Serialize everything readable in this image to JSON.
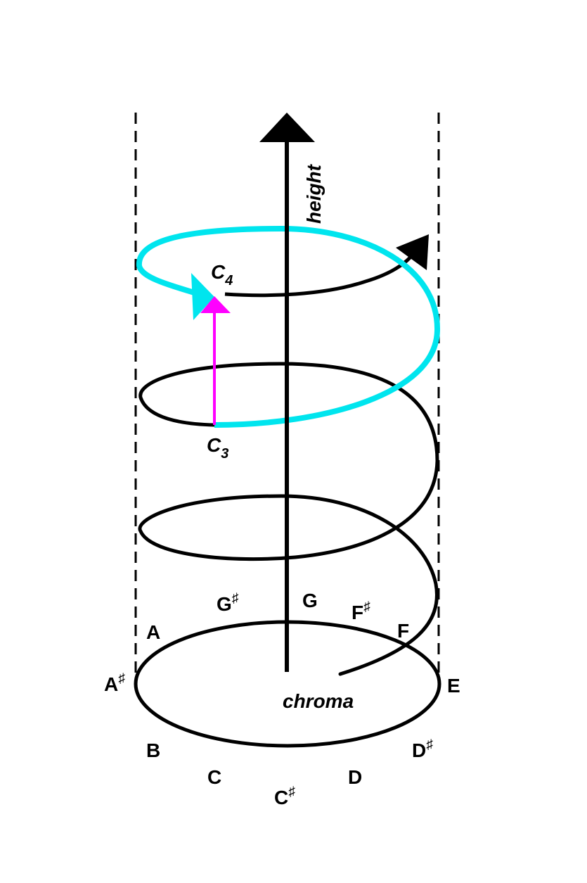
{
  "axis": {
    "label": "height"
  },
  "base": {
    "label": "chroma"
  },
  "pitches": {
    "c3": "C",
    "c3_sub": "3",
    "c4": "C",
    "c4_sub": "4"
  },
  "chroma_notes": {
    "a": "A",
    "a_sharp": "A",
    "a_sharp_mark": "♯",
    "b": "B",
    "c": "C",
    "c_sharp": "C",
    "c_sharp_mark": "♯",
    "d": "D",
    "d_sharp": "D",
    "d_sharp_mark": "♯",
    "e": "E",
    "f": "F",
    "f_sharp": "F",
    "f_sharp_mark": "♯",
    "g": "G",
    "g_sharp": "G",
    "g_sharp_mark": "♯"
  },
  "colors": {
    "helix": "#000000",
    "octave_turn": "#00e5ee",
    "octave_jump": "#ff00ff",
    "boundary": "#000000"
  }
}
